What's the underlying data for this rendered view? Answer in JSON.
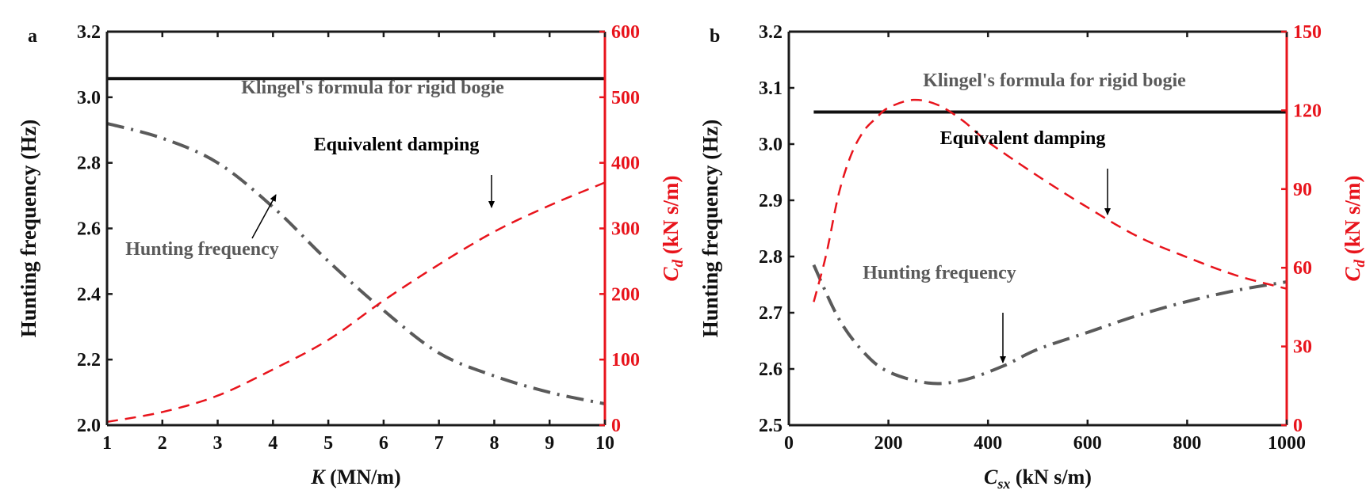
{
  "colors": {
    "axis": "#1a1a1a",
    "hunting": "#5a5a5a",
    "damping": "#e8141c",
    "klingel": "#111111",
    "right_axis": "#e8141c"
  },
  "chart_data": [
    {
      "type": "line",
      "panel_label": "a",
      "xlabel_main": "K",
      "xlabel_unit": " (MN/m)",
      "ylabel": "Hunting frequency (Hz)",
      "y2label_main": "C",
      "y2label_sub": "d",
      "y2label_unit": " (kN s/m)",
      "xlim": [
        1,
        10
      ],
      "ylim": [
        2.0,
        3.2
      ],
      "y2lim": [
        0,
        600
      ],
      "xticks": [
        "1",
        "2",
        "3",
        "4",
        "5",
        "6",
        "7",
        "8",
        "9",
        "10"
      ],
      "yticks": [
        "2.0",
        "2.2",
        "2.4",
        "2.6",
        "2.8",
        "3.0",
        "3.2"
      ],
      "y2ticks": [
        "0",
        "100",
        "200",
        "300",
        "400",
        "500",
        "600"
      ],
      "grid": false,
      "series": [
        {
          "name": "Klingel's formula for rigid bogie",
          "axis": "left",
          "style": "solid",
          "x": [
            1,
            10
          ],
          "y": [
            3.057,
            3.057
          ]
        },
        {
          "name": "Hunting frequency",
          "axis": "left",
          "style": "dash-dot",
          "x": [
            1,
            2,
            3,
            4,
            5,
            6,
            7,
            8,
            9,
            10
          ],
          "y": [
            2.92,
            2.875,
            2.8,
            2.665,
            2.5,
            2.35,
            2.22,
            2.15,
            2.1,
            2.065
          ]
        },
        {
          "name": "Equivalent damping",
          "axis": "right",
          "style": "dashed",
          "x": [
            1,
            2,
            3,
            4,
            5,
            6,
            7,
            8,
            9,
            10
          ],
          "y": [
            5,
            20,
            45,
            85,
            130,
            190,
            245,
            295,
            335,
            370
          ]
        }
      ],
      "annotations": [
        {
          "text": "Klingel's formula for rigid bogie",
          "color": "#5a5a5a"
        },
        {
          "text": "Equivalent damping",
          "color": "#000000"
        },
        {
          "text": "Hunting frequency",
          "color": "#5a5a5a"
        }
      ]
    },
    {
      "type": "line",
      "panel_label": "b",
      "xlabel_main": "C",
      "xlabel_sub": "sx",
      "xlabel_unit": " (kN s/m)",
      "ylabel": "Hunting frequency (Hz)",
      "y2label_main": "C",
      "y2label_sub": "d",
      "y2label_unit": " (kN s/m)",
      "xlim": [
        0,
        1000
      ],
      "ylim": [
        2.5,
        3.2
      ],
      "y2lim": [
        0,
        150
      ],
      "xticks": [
        "0",
        "200",
        "400",
        "600",
        "800",
        "1000"
      ],
      "yticks": [
        "2.5",
        "2.6",
        "2.7",
        "2.8",
        "2.9",
        "3.0",
        "3.1",
        "3.2"
      ],
      "y2ticks": [
        "0",
        "30",
        "60",
        "90",
        "120",
        "150"
      ],
      "grid": false,
      "series": [
        {
          "name": "Klingel's formula for rigid bogie",
          "axis": "left",
          "style": "solid",
          "x": [
            50,
            1000
          ],
          "y": [
            3.057,
            3.057
          ]
        },
        {
          "name": "Hunting frequency",
          "axis": "left",
          "style": "dash-dot",
          "x": [
            50,
            100,
            150,
            200,
            280,
            350,
            430,
            500,
            600,
            700,
            800,
            900,
            1000
          ],
          "y": [
            2.785,
            2.69,
            2.63,
            2.595,
            2.575,
            2.58,
            2.605,
            2.635,
            2.665,
            2.695,
            2.72,
            2.74,
            2.755
          ]
        },
        {
          "name": "Equivalent damping",
          "axis": "right",
          "style": "dashed",
          "x": [
            50,
            75,
            100,
            125,
            150,
            175,
            200,
            250,
            300,
            350,
            400,
            500,
            600,
            700,
            800,
            900,
            1000
          ],
          "y": [
            47,
            65,
            88,
            103,
            112,
            117,
            121,
            124,
            122,
            116,
            108,
            95,
            83,
            72,
            64,
            57,
            52
          ]
        }
      ],
      "annotations": [
        {
          "text": "Klingel's formula for rigid bogie",
          "color": "#5a5a5a"
        },
        {
          "text": "Equivalent damping",
          "color": "#000000"
        },
        {
          "text": "Hunting frequency",
          "color": "#5a5a5a"
        }
      ]
    }
  ]
}
